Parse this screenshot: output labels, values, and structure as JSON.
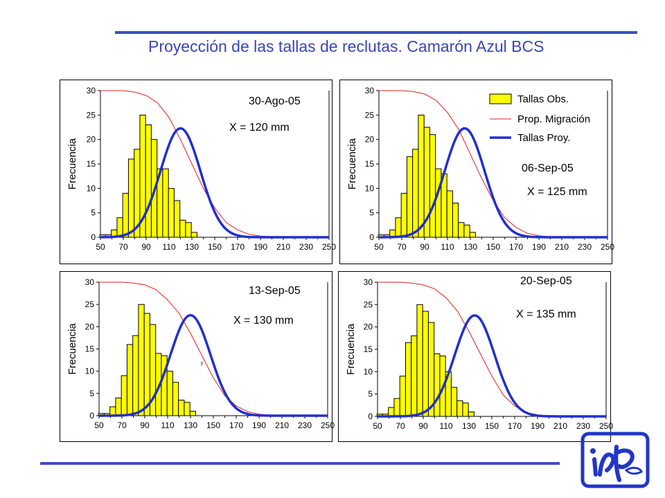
{
  "title": "Proyección de las tallas de reclutas. Camarón Azul BCS",
  "colors": {
    "accent": "#3a4fc4",
    "bars": "#ffff00",
    "migration": "#e0201b",
    "projected": "#1f2fd1",
    "logo": "#2136c9"
  },
  "logo": {
    "icon": "inp-logo-icon"
  },
  "legend": {
    "obs": "Tallas Obs.",
    "migration": "Prop. Migración",
    "proj": "Tallas Proy."
  },
  "chart_data": [
    {
      "type": "bar",
      "date": "30-Ago-05",
      "mean_label": "X = 120 mm",
      "ylabel": "Frecuencia",
      "xticks": [
        "50",
        "70",
        "90",
        "110",
        "130",
        "150",
        "170",
        "190",
        "210",
        "230",
        "250"
      ],
      "yticks": [
        "0",
        "5",
        "10",
        "15",
        "20",
        "25",
        "30"
      ],
      "xlim": [
        50,
        250
      ],
      "ylim": [
        0,
        30
      ],
      "legend": false,
      "bars": {
        "name": "Tallas Obs.",
        "x": [
          52,
          57,
          62,
          67,
          72,
          77,
          82,
          87,
          92,
          97,
          102,
          107,
          112,
          117,
          122,
          127,
          132
        ],
        "values": [
          0.5,
          0.5,
          1.5,
          4,
          9,
          16,
          18,
          25,
          23,
          20,
          14,
          14,
          10,
          7.5,
          3.5,
          3,
          1
        ]
      },
      "migration": {
        "name": "Prop. Migración",
        "x": [
          50,
          70,
          80,
          90,
          100,
          110,
          120,
          130,
          140,
          150,
          160,
          170,
          180,
          190,
          200,
          210,
          250
        ],
        "values": [
          30,
          30,
          29.7,
          29,
          27.5,
          24.5,
          20,
          15,
          10,
          6,
          3,
          1.5,
          0.6,
          0.25,
          0.1,
          0,
          0
        ]
      },
      "projected": {
        "name": "Tallas Proy.",
        "mean": 120,
        "peak": 22.3,
        "sd": 17.5
      }
    },
    {
      "type": "bar",
      "date": "06-Sep-05",
      "mean_label": "X = 125 mm",
      "ylabel": "Frecuencia",
      "xticks": [
        "50",
        "70",
        "90",
        "110",
        "130",
        "150",
        "170",
        "190",
        "210",
        "230",
        "250"
      ],
      "yticks": [
        "0",
        "5",
        "10",
        "15",
        "20",
        "25",
        "30"
      ],
      "xlim": [
        50,
        250
      ],
      "ylim": [
        0,
        30
      ],
      "legend": true,
      "bars": {
        "name": "Tallas Obs.",
        "x": [
          52,
          57,
          62,
          67,
          72,
          77,
          82,
          87,
          92,
          97,
          102,
          107,
          112,
          117,
          122,
          127,
          132
        ],
        "values": [
          0.5,
          0.5,
          1.5,
          4,
          9,
          16.5,
          18,
          25,
          22.5,
          21,
          14,
          13,
          9.5,
          7,
          3,
          2.5,
          1
        ]
      },
      "migration": {
        "name": "Prop. Migración",
        "x": [
          50,
          70,
          80,
          90,
          100,
          110,
          120,
          130,
          140,
          150,
          160,
          170,
          180,
          190,
          200,
          210,
          250
        ],
        "values": [
          30,
          30,
          29.8,
          29.3,
          28,
          25.5,
          22,
          17,
          12,
          7.5,
          4,
          2,
          0.8,
          0.3,
          0.1,
          0,
          0
        ]
      },
      "projected": {
        "name": "Tallas Proy.",
        "mean": 125,
        "peak": 22.3,
        "sd": 17.5
      }
    },
    {
      "type": "bar",
      "date": "13-Sep-05",
      "mean_label": "X = 130 mm",
      "ylabel": "Frecuencia",
      "xticks": [
        "50",
        "70",
        "90",
        "110",
        "130",
        "150",
        "170",
        "190",
        "210",
        "230",
        "250"
      ],
      "yticks": [
        "0",
        "5",
        "10",
        "15",
        "20",
        "25",
        "30"
      ],
      "xlim": [
        50,
        250
      ],
      "ylim": [
        0,
        30
      ],
      "legend": false,
      "stray_label": "y",
      "bars": {
        "name": "Tallas Obs.",
        "x": [
          52,
          57,
          62,
          67,
          72,
          77,
          82,
          87,
          92,
          97,
          102,
          107,
          112,
          117,
          122,
          127,
          132
        ],
        "values": [
          0.5,
          0.5,
          2,
          4,
          9,
          16,
          18,
          25,
          23,
          20.5,
          14,
          13.5,
          10,
          7.5,
          3.5,
          3,
          1
        ]
      },
      "migration": {
        "name": "Prop. Migración",
        "x": [
          50,
          70,
          80,
          90,
          100,
          110,
          120,
          130,
          140,
          150,
          160,
          170,
          180,
          190,
          200,
          210,
          250
        ],
        "values": [
          30,
          30,
          29.8,
          29.4,
          28.3,
          26,
          23,
          18.5,
          13.5,
          8.5,
          4.5,
          2.2,
          0.9,
          0.35,
          0.1,
          0,
          0
        ]
      },
      "projected": {
        "name": "Tallas Proy.",
        "mean": 130,
        "peak": 22.6,
        "sd": 17.5
      }
    },
    {
      "type": "bar",
      "date": "20-Sep-05",
      "mean_label": "X = 135 mm",
      "ylabel": "Frecuencia",
      "xticks": [
        "50",
        "70",
        "90",
        "110",
        "130",
        "150",
        "170",
        "190",
        "210",
        "230",
        "250"
      ],
      "yticks": [
        "0",
        "5",
        "10",
        "15",
        "20",
        "25",
        "30"
      ],
      "xlim": [
        50,
        250
      ],
      "ylim": [
        0,
        30
      ],
      "legend": false,
      "bars": {
        "name": "Tallas Obs.",
        "x": [
          52,
          57,
          62,
          67,
          72,
          77,
          82,
          87,
          92,
          97,
          102,
          107,
          112,
          117,
          122,
          127,
          132
        ],
        "values": [
          0.5,
          0.5,
          2,
          4,
          9,
          16.5,
          18,
          25,
          23.5,
          21,
          14,
          13.5,
          10,
          6.5,
          3.5,
          3,
          1
        ]
      },
      "migration": {
        "name": "Prop. Migración",
        "x": [
          50,
          70,
          80,
          90,
          100,
          110,
          120,
          130,
          140,
          150,
          160,
          170,
          180,
          190,
          200,
          210,
          250
        ],
        "values": [
          30,
          30,
          29.8,
          29.4,
          28.5,
          26.5,
          23.5,
          19,
          14,
          9,
          4.8,
          2.3,
          0.9,
          0.35,
          0.1,
          0,
          0
        ]
      },
      "projected": {
        "name": "Tallas Proy.",
        "mean": 135,
        "peak": 22.6,
        "sd": 17.5
      }
    }
  ]
}
